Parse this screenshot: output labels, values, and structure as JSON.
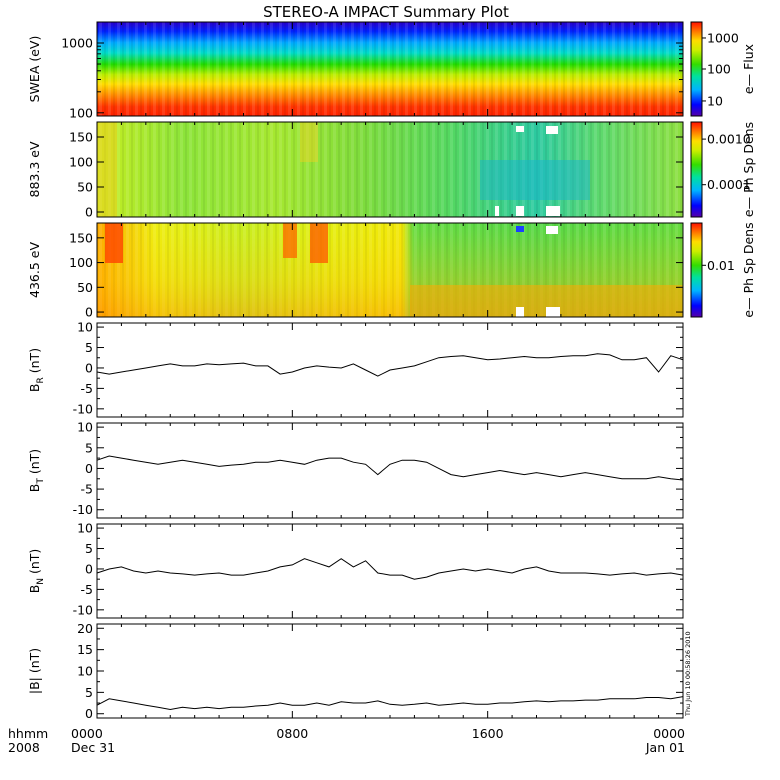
{
  "title": "STEREO-A IMPACT Summary Plot",
  "stamp": "Thu Jun 10 00:58:26 2010",
  "time_axis": {
    "unit_label": "hhmm",
    "year_label": "2008",
    "range_hours": [
      0,
      24
    ],
    "ticks": [
      {
        "hour": 0,
        "label": "0000",
        "sublabel": "Dec 31"
      },
      {
        "hour": 8,
        "label": "0800",
        "sublabel": ""
      },
      {
        "hour": 16,
        "label": "1600",
        "sublabel": ""
      },
      {
        "hour": 24,
        "label": "0000",
        "sublabel": "Jan 01"
      }
    ]
  },
  "spectrograms": [
    {
      "ylabel": "SWEA (eV)",
      "ylog": true,
      "yrange": [
        90,
        2000
      ],
      "ticks": [
        {
          "value": 100,
          "label": "100"
        },
        {
          "value": 1000,
          "label": "1000"
        }
      ],
      "colorbar": {
        "label": "e— Flux",
        "ticks": [
          {
            "level": 0.16,
            "label": "10"
          },
          {
            "level": 0.5,
            "label": "100"
          },
          {
            "level": 0.83,
            "label": "1000"
          }
        ]
      }
    },
    {
      "ylabel": "883.3 eV",
      "ylog": false,
      "yrange": [
        -10,
        180
      ],
      "ticks": [
        {
          "value": 0,
          "label": "0"
        },
        {
          "value": 50,
          "label": "50"
        },
        {
          "value": 100,
          "label": "100"
        },
        {
          "value": 150,
          "label": "150"
        }
      ],
      "colorbar": {
        "label": "e— Ph Sp Dens",
        "ticks": [
          {
            "level": 0.34,
            "label": "0.0001"
          },
          {
            "level": 0.82,
            "label": "0.0010"
          }
        ]
      }
    },
    {
      "ylabel": "436.5 eV",
      "ylog": false,
      "yrange": [
        -10,
        180
      ],
      "ticks": [
        {
          "value": 0,
          "label": "0"
        },
        {
          "value": 50,
          "label": "50"
        },
        {
          "value": 100,
          "label": "100"
        },
        {
          "value": 150,
          "label": "150"
        }
      ],
      "colorbar": {
        "label": "e— Ph Sp Dens",
        "ticks": [
          {
            "level": 0.55,
            "label": "0.01"
          }
        ]
      }
    }
  ],
  "chart_data": [
    {
      "type": "line",
      "ylabel": "B",
      "ylabel_sub": "R",
      "ylabel_unit": "(nT)",
      "ylim": [
        -12,
        11
      ],
      "yticks": [
        -10,
        -5,
        0,
        5,
        10
      ],
      "x": [
        0,
        0.5,
        1,
        1.5,
        2,
        2.5,
        3,
        3.5,
        4,
        4.5,
        5,
        5.5,
        6,
        6.5,
        7,
        7.5,
        8,
        8.5,
        9,
        9.5,
        10,
        10.5,
        11,
        11.5,
        12,
        12.5,
        13,
        13.5,
        14,
        14.5,
        15,
        15.5,
        16,
        16.5,
        17,
        17.5,
        18,
        18.5,
        19,
        19.5,
        20,
        20.5,
        21,
        21.5,
        22,
        22.5,
        23,
        23.5,
        24
      ],
      "y": [
        -1,
        -1.5,
        -1,
        -0.5,
        0,
        0.5,
        1,
        0.5,
        0.5,
        1,
        0.8,
        1,
        1.2,
        0.5,
        0.5,
        -1.5,
        -1,
        0,
        0.5,
        0.2,
        0,
        1,
        -0.5,
        -2,
        -0.5,
        0,
        0.5,
        1.5,
        2.5,
        2.8,
        3,
        2.5,
        2,
        2.2,
        2.5,
        2.8,
        2.5,
        2.5,
        2.8,
        3,
        3,
        3.5,
        3.2,
        2,
        2,
        2.5,
        -1,
        3,
        2
      ]
    },
    {
      "type": "line",
      "ylabel": "B",
      "ylabel_sub": "T",
      "ylabel_unit": "(nT)",
      "ylim": [
        -12,
        11
      ],
      "yticks": [
        -10,
        -5,
        0,
        5,
        10
      ],
      "x": [
        0,
        0.5,
        1,
        1.5,
        2,
        2.5,
        3,
        3.5,
        4,
        4.5,
        5,
        5.5,
        6,
        6.5,
        7,
        7.5,
        8,
        8.5,
        9,
        9.5,
        10,
        10.5,
        11,
        11.5,
        12,
        12.5,
        13,
        13.5,
        14,
        14.5,
        15,
        15.5,
        16,
        16.5,
        17,
        17.5,
        18,
        18.5,
        19,
        19.5,
        20,
        20.5,
        21,
        21.5,
        22,
        22.5,
        23,
        23.5,
        24
      ],
      "y": [
        2,
        3,
        2.5,
        2,
        1.5,
        1,
        1.5,
        2,
        1.5,
        1,
        0.5,
        0.8,
        1,
        1.5,
        1.5,
        2,
        1.5,
        1,
        2,
        2.5,
        2.5,
        1.5,
        1,
        -1.5,
        1,
        2,
        2,
        1.5,
        0,
        -1.5,
        -2,
        -1.5,
        -1,
        -0.5,
        -1,
        -1.5,
        -1,
        -1.5,
        -2,
        -1.5,
        -1,
        -1.5,
        -2,
        -2.5,
        -2.5,
        -2.5,
        -2,
        -2.5,
        -2.8
      ]
    },
    {
      "type": "line",
      "ylabel": "B",
      "ylabel_sub": "N",
      "ylabel_unit": "(nT)",
      "ylim": [
        -12,
        11
      ],
      "yticks": [
        -10,
        -5,
        0,
        5,
        10
      ],
      "x": [
        0,
        0.5,
        1,
        1.5,
        2,
        2.5,
        3,
        3.5,
        4,
        4.5,
        5,
        5.5,
        6,
        6.5,
        7,
        7.5,
        8,
        8.5,
        9,
        9.5,
        10,
        10.5,
        11,
        11.5,
        12,
        12.5,
        13,
        13.5,
        14,
        14.5,
        15,
        15.5,
        16,
        16.5,
        17,
        17.5,
        18,
        18.5,
        19,
        19.5,
        20,
        20.5,
        21,
        21.5,
        22,
        22.5,
        23,
        23.5,
        24
      ],
      "y": [
        -1,
        0,
        0.5,
        -0.5,
        -1,
        -0.5,
        -1,
        -1.2,
        -1.5,
        -1.2,
        -1,
        -1.5,
        -1.5,
        -1,
        -0.5,
        0.5,
        1,
        2.5,
        1.5,
        0.5,
        2.5,
        0.5,
        2,
        -1,
        -1.5,
        -1.5,
        -2.5,
        -2,
        -1,
        -0.5,
        0,
        -0.5,
        0,
        -0.5,
        -1,
        0,
        0.5,
        -0.5,
        -1,
        -1,
        -1,
        -1.2,
        -1.5,
        -1.2,
        -1,
        -1.5,
        -1.2,
        -1,
        -1.5
      ]
    },
    {
      "type": "line",
      "ylabel": "|B|",
      "ylabel_sub": "",
      "ylabel_unit": "(nT)",
      "ylim": [
        -1,
        21
      ],
      "yticks": [
        0,
        5,
        10,
        15,
        20
      ],
      "x": [
        0,
        0.5,
        1,
        1.5,
        2,
        2.5,
        3,
        3.5,
        4,
        4.5,
        5,
        5.5,
        6,
        6.5,
        7,
        7.5,
        8,
        8.5,
        9,
        9.5,
        10,
        10.5,
        11,
        11.5,
        12,
        12.5,
        13,
        13.5,
        14,
        14.5,
        15,
        15.5,
        16,
        16.5,
        17,
        17.5,
        18,
        18.5,
        19,
        19.5,
        20,
        20.5,
        21,
        21.5,
        22,
        22.5,
        23,
        23.5,
        24
      ],
      "y": [
        2,
        3.5,
        3,
        2.5,
        2,
        1.5,
        1,
        1.5,
        1.2,
        1.5,
        1.2,
        1.5,
        1.5,
        1.8,
        2,
        2.5,
        2,
        2,
        2.5,
        2,
        2.8,
        2.5,
        2.5,
        3,
        2.2,
        2,
        2.2,
        2.5,
        2,
        2.2,
        2.5,
        2.2,
        2.2,
        2.5,
        2.5,
        2.8,
        3,
        2.8,
        3,
        3,
        3.2,
        3.2,
        3.5,
        3.5,
        3.5,
        3.8,
        3.8,
        3.5,
        4
      ]
    }
  ]
}
